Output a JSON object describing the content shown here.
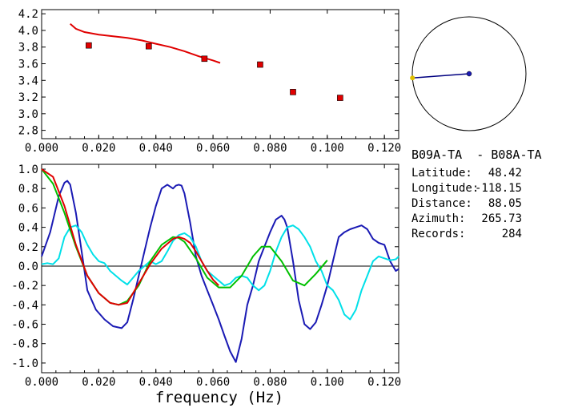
{
  "chart_data": [
    {
      "type": "scatter",
      "xlim": [
        0.0,
        0.125
      ],
      "ylim": [
        2.7,
        4.25
      ],
      "xticks": [
        "0.000",
        "0.020",
        "0.040",
        "0.060",
        "0.080",
        "0.100",
        "0.120"
      ],
      "yticks": [
        "2.8",
        "3.0",
        "3.2",
        "3.4",
        "3.6",
        "3.8",
        "4.0",
        "4.2"
      ],
      "series": [
        {
          "kind": "line",
          "color": "#e00000",
          "x": [
            0.01,
            0.012,
            0.015,
            0.02,
            0.025,
            0.03,
            0.035,
            0.04,
            0.045,
            0.05,
            0.055,
            0.06,
            0.0625
          ],
          "y": [
            4.08,
            4.02,
            3.98,
            3.95,
            3.93,
            3.91,
            3.88,
            3.84,
            3.8,
            3.75,
            3.69,
            3.64,
            3.61
          ]
        },
        {
          "kind": "points",
          "color": "#e00000",
          "x": [
            0.0165,
            0.0375,
            0.057,
            0.0765,
            0.088,
            0.1045
          ],
          "y": [
            3.82,
            3.81,
            3.66,
            3.59,
            3.26,
            3.19
          ]
        }
      ]
    },
    {
      "type": "line",
      "xlim": [
        0.0,
        0.125
      ],
      "ylim": [
        -1.1,
        1.05
      ],
      "xlabel": "frequency (Hz)",
      "xticks": [
        "0.000",
        "0.020",
        "0.040",
        "0.060",
        "0.080",
        "0.100",
        "0.120"
      ],
      "yticks": [
        "1.0",
        "0.8",
        "0.6",
        "0.4",
        "0.2",
        "0.0",
        "-0.2",
        "-0.4",
        "-0.6",
        "-0.8",
        "-1.0"
      ],
      "zero_line": true,
      "series": [
        {
          "color": "#1a1ab4",
          "x": [
            0.0,
            0.003,
            0.006,
            0.008,
            0.009,
            0.01,
            0.012,
            0.014,
            0.016,
            0.019,
            0.022,
            0.025,
            0.028,
            0.03,
            0.032,
            0.034,
            0.036,
            0.038,
            0.04,
            0.042,
            0.044,
            0.045,
            0.046,
            0.047,
            0.048,
            0.049,
            0.05,
            0.052,
            0.054,
            0.056,
            0.058,
            0.06,
            0.062,
            0.064,
            0.066,
            0.068,
            0.07,
            0.072,
            0.074,
            0.076,
            0.078,
            0.08,
            0.082,
            0.084,
            0.085,
            0.086,
            0.088,
            0.09,
            0.092,
            0.094,
            0.096,
            0.098,
            0.1,
            0.102,
            0.104,
            0.106,
            0.108,
            0.11,
            0.112,
            0.114,
            0.116,
            0.118,
            0.12,
            0.122,
            0.124,
            0.125
          ],
          "y": [
            0.1,
            0.35,
            0.72,
            0.86,
            0.88,
            0.84,
            0.55,
            0.15,
            -0.25,
            -0.45,
            -0.55,
            -0.62,
            -0.64,
            -0.58,
            -0.35,
            -0.1,
            0.15,
            0.4,
            0.62,
            0.8,
            0.84,
            0.82,
            0.8,
            0.83,
            0.84,
            0.83,
            0.75,
            0.45,
            0.1,
            -0.1,
            -0.25,
            -0.4,
            -0.55,
            -0.72,
            -0.88,
            -0.99,
            -0.75,
            -0.4,
            -0.2,
            0.05,
            0.2,
            0.35,
            0.48,
            0.52,
            0.48,
            0.4,
            0.05,
            -0.35,
            -0.6,
            -0.65,
            -0.58,
            -0.4,
            -0.2,
            0.05,
            0.3,
            0.35,
            0.38,
            0.4,
            0.42,
            0.38,
            0.28,
            0.24,
            0.22,
            0.05,
            -0.05,
            -0.03
          ]
        },
        {
          "color": "#00e0e8",
          "x": [
            0.0,
            0.002,
            0.004,
            0.006,
            0.008,
            0.01,
            0.012,
            0.014,
            0.016,
            0.018,
            0.02,
            0.022,
            0.024,
            0.026,
            0.028,
            0.03,
            0.032,
            0.034,
            0.036,
            0.038,
            0.04,
            0.042,
            0.044,
            0.046,
            0.048,
            0.05,
            0.052,
            0.054,
            0.056,
            0.058,
            0.06,
            0.062,
            0.064,
            0.066,
            0.068,
            0.07,
            0.072,
            0.074,
            0.076,
            0.078,
            0.08,
            0.082,
            0.084,
            0.086,
            0.088,
            0.09,
            0.092,
            0.094,
            0.096,
            0.098,
            0.1,
            0.102,
            0.104,
            0.106,
            0.108,
            0.11,
            0.112,
            0.114,
            0.116,
            0.118,
            0.12,
            0.122,
            0.124,
            0.125
          ],
          "y": [
            0.02,
            0.03,
            0.02,
            0.08,
            0.3,
            0.4,
            0.42,
            0.35,
            0.22,
            0.12,
            0.05,
            0.03,
            -0.05,
            -0.1,
            -0.15,
            -0.19,
            -0.12,
            -0.05,
            0.0,
            0.05,
            0.02,
            0.05,
            0.15,
            0.26,
            0.32,
            0.34,
            0.3,
            0.2,
            0.05,
            -0.05,
            -0.1,
            -0.15,
            -0.2,
            -0.18,
            -0.12,
            -0.1,
            -0.12,
            -0.2,
            -0.25,
            -0.2,
            -0.05,
            0.15,
            0.3,
            0.4,
            0.42,
            0.38,
            0.3,
            0.2,
            0.05,
            -0.05,
            -0.2,
            -0.25,
            -0.35,
            -0.5,
            -0.55,
            -0.45,
            -0.25,
            -0.1,
            0.05,
            0.1,
            0.08,
            0.06,
            0.07,
            0.1
          ]
        },
        {
          "color": "#00c000",
          "x": [
            0.0,
            0.004,
            0.008,
            0.012,
            0.016,
            0.02,
            0.024,
            0.027,
            0.03,
            0.034,
            0.038,
            0.042,
            0.046,
            0.048,
            0.05,
            0.054,
            0.058,
            0.062,
            0.066,
            0.07,
            0.074,
            0.077,
            0.08,
            0.084,
            0.088,
            0.092,
            0.096,
            0.1
          ],
          "y": [
            1.0,
            0.85,
            0.55,
            0.2,
            -0.1,
            -0.28,
            -0.38,
            -0.4,
            -0.36,
            -0.2,
            0.05,
            0.22,
            0.3,
            0.29,
            0.25,
            0.08,
            -0.12,
            -0.22,
            -0.22,
            -0.1,
            0.1,
            0.2,
            0.2,
            0.05,
            -0.15,
            -0.2,
            -0.08,
            0.06
          ]
        },
        {
          "color": "#e00000",
          "x": [
            0.0,
            0.004,
            0.008,
            0.012,
            0.016,
            0.02,
            0.024,
            0.027,
            0.03,
            0.034,
            0.038,
            0.042,
            0.046,
            0.048,
            0.05,
            0.052,
            0.054,
            0.056,
            0.058,
            0.06,
            0.062
          ],
          "y": [
            1.0,
            0.92,
            0.62,
            0.22,
            -0.1,
            -0.28,
            -0.38,
            -0.4,
            -0.38,
            -0.18,
            0.02,
            0.18,
            0.28,
            0.3,
            0.28,
            0.24,
            0.15,
            0.05,
            -0.05,
            -0.14,
            -0.2
          ]
        }
      ]
    }
  ],
  "compass": {
    "azimuth": 265.73,
    "circle_color": "#000000",
    "line_color": "#000080",
    "center_dot_color": "#1a1ab4",
    "end_dot_color": "#e0c000"
  },
  "info": {
    "pair": "B09A-TA  - B08A-TA",
    "rows": [
      {
        "label": "Latitude:",
        "value": "48.42"
      },
      {
        "label": "Longitude:",
        "value": "-118.15"
      },
      {
        "label": "Distance:",
        "value": "88.05"
      },
      {
        "label": "Azimuth:",
        "value": "265.73"
      },
      {
        "label": "Records:",
        "value": "284"
      }
    ]
  }
}
